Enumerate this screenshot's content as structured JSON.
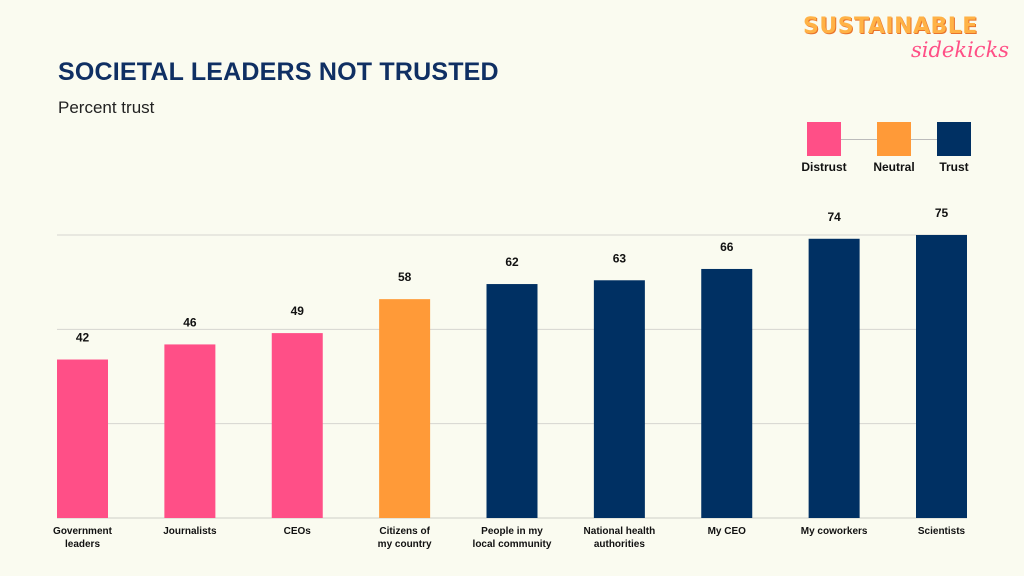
{
  "header": {
    "title": "SOCIETAL LEADERS NOT TRUSTED",
    "subtitle": "Percent trust"
  },
  "logo": {
    "main": "SUSTAINABLE",
    "sub": "sidekicks"
  },
  "legend": [
    {
      "label": "Distrust",
      "color": "#ff4f87"
    },
    {
      "label": "Neutral",
      "color": "#ff9a38"
    },
    {
      "label": "Trust",
      "color": "#003063"
    }
  ],
  "chart_data": {
    "type": "bar",
    "categories": [
      "Government leaders",
      "Journalists",
      "CEOs",
      "Citizens of my country",
      "People in my local community",
      "National health authorities",
      "My CEO",
      "My coworkers",
      "Scientists"
    ],
    "tick_lines": [
      [
        "Government",
        "leaders"
      ],
      [
        "Journalists"
      ],
      [
        "CEOs"
      ],
      [
        "Citizens of",
        "my country"
      ],
      [
        "People in my",
        "local community"
      ],
      [
        "National health",
        "authorities"
      ],
      [
        "My CEO"
      ],
      [
        "My coworkers"
      ],
      [
        "Scientists"
      ]
    ],
    "values": [
      42,
      46,
      49,
      58,
      62,
      63,
      66,
      74,
      75
    ],
    "group": [
      "Distrust",
      "Distrust",
      "Distrust",
      "Neutral",
      "Trust",
      "Trust",
      "Trust",
      "Trust",
      "Trust"
    ],
    "colors": {
      "Distrust": "#ff4f87",
      "Neutral": "#ff9a38",
      "Trust": "#003063"
    },
    "ylim": [
      0,
      75
    ],
    "gridlines": [
      25,
      50,
      75
    ],
    "grid": true,
    "legend_position": "top-right",
    "xlabel": "",
    "ylabel": ""
  }
}
